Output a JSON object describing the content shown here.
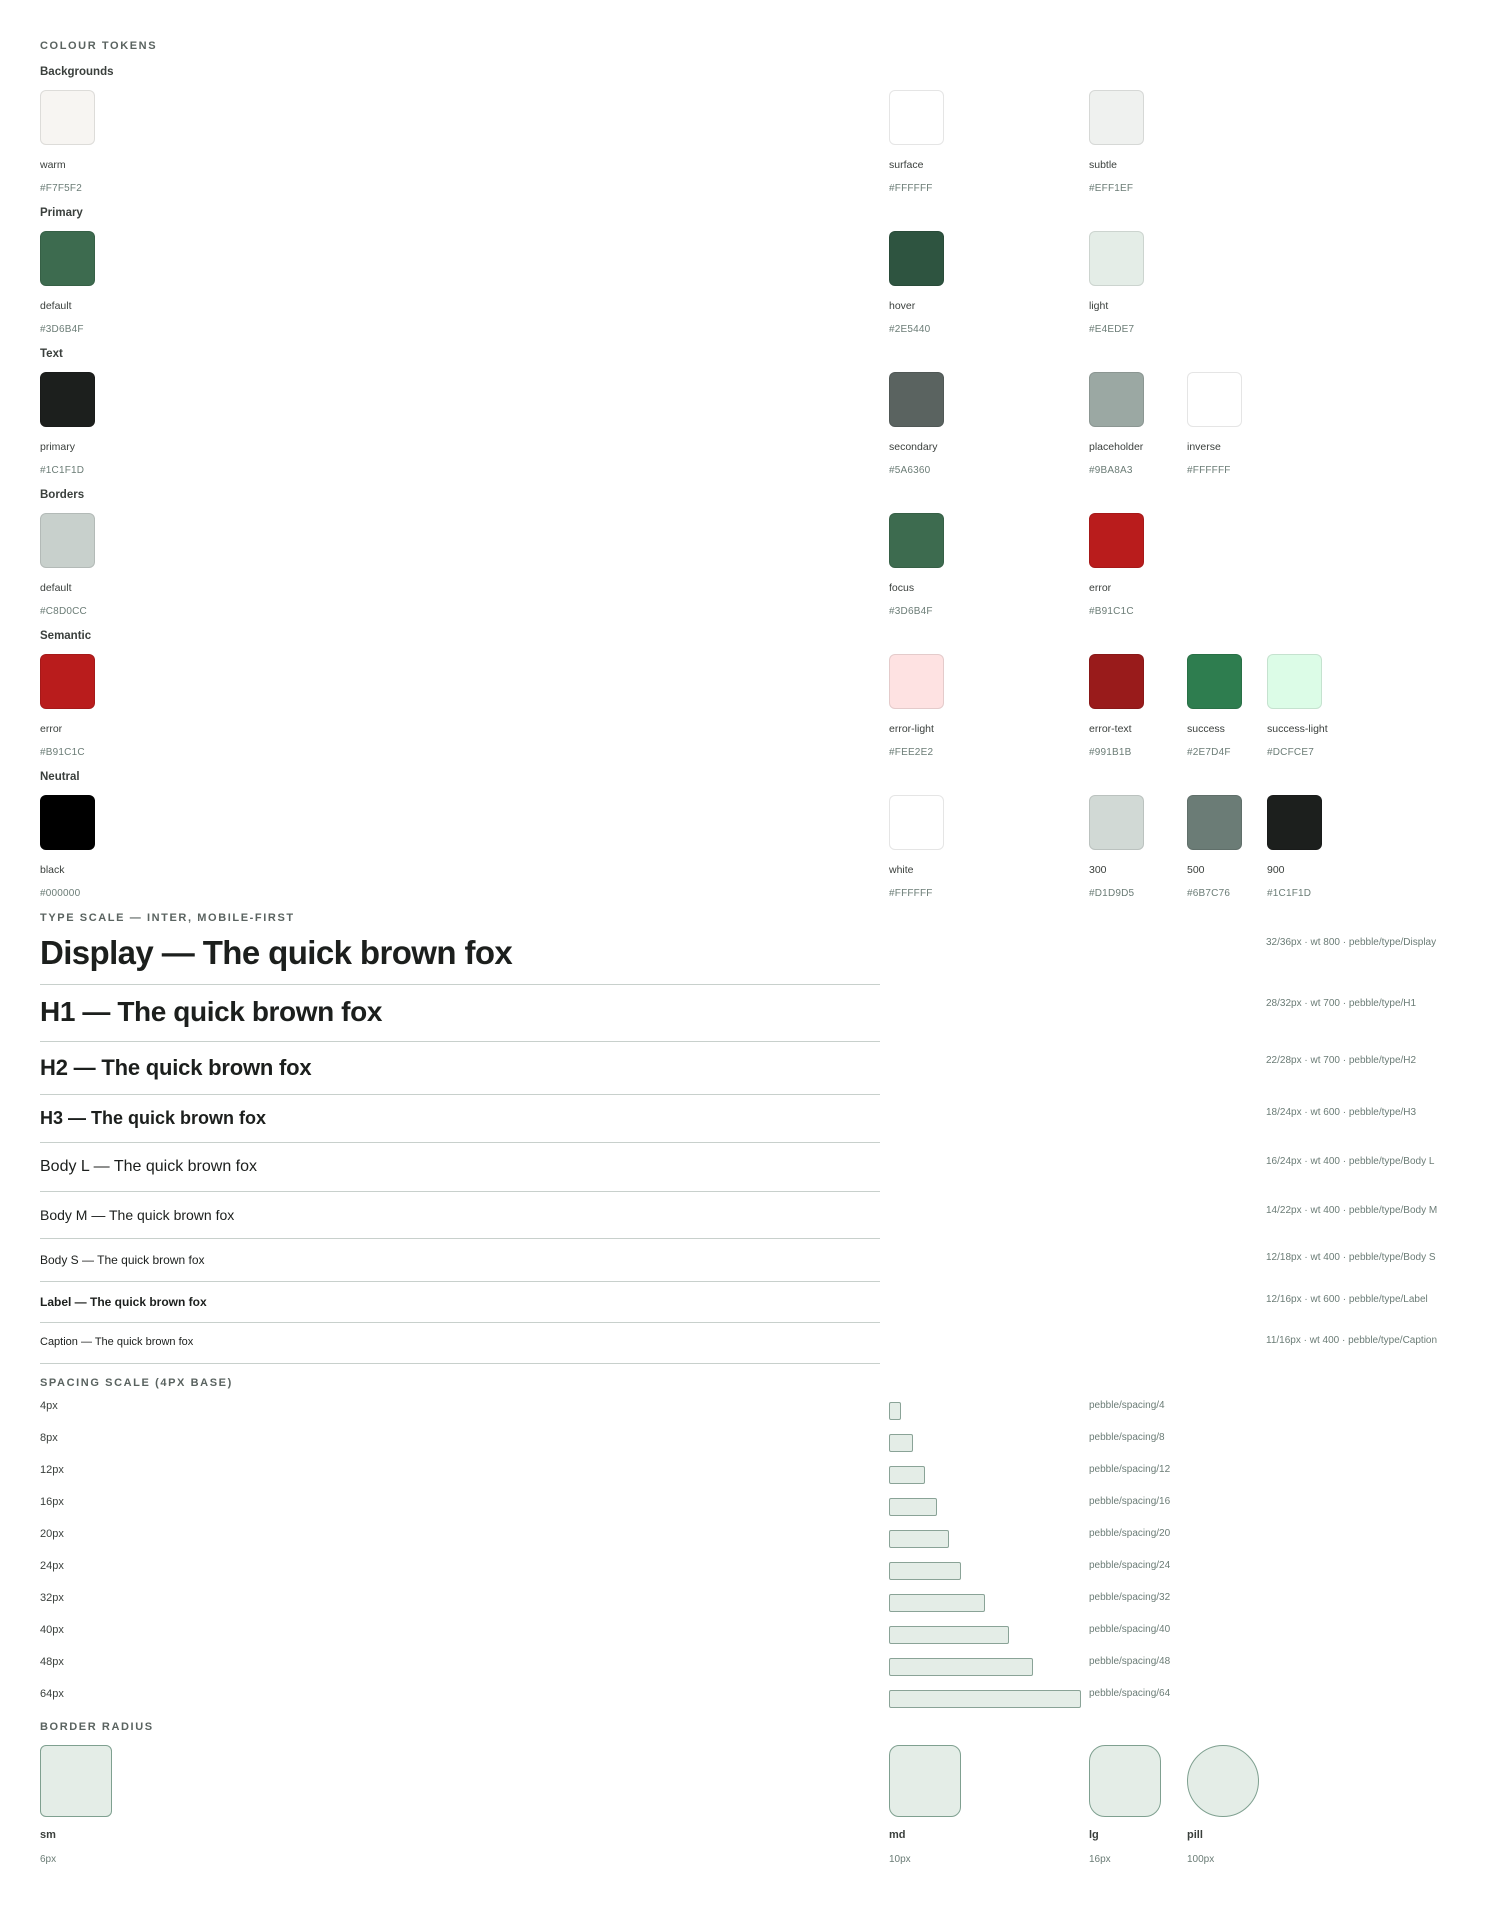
{
  "colour": {
    "title": "COLOUR TOKENS",
    "groups": [
      {
        "label": "Backgrounds",
        "swatches": [
          {
            "name": "warm",
            "hex": "#F7F5F2"
          },
          {
            "name": "surface",
            "hex": "#FFFFFF"
          },
          {
            "name": "subtle",
            "hex": "#EFF1EF"
          }
        ]
      },
      {
        "label": "Primary",
        "swatches": [
          {
            "name": "default",
            "hex": "#3D6B4F"
          },
          {
            "name": "hover",
            "hex": "#2E5440"
          },
          {
            "name": "light",
            "hex": "#E4EDE7"
          }
        ]
      },
      {
        "label": "Text",
        "swatches": [
          {
            "name": "primary",
            "hex": "#1C1F1D"
          },
          {
            "name": "secondary",
            "hex": "#5A6360"
          },
          {
            "name": "placeholder",
            "hex": "#9BA8A3"
          },
          {
            "name": "inverse",
            "hex": "#FFFFFF"
          }
        ]
      },
      {
        "label": "Borders",
        "swatches": [
          {
            "name": "default",
            "hex": "#C8D0CC"
          },
          {
            "name": "focus",
            "hex": "#3D6B4F"
          },
          {
            "name": "error",
            "hex": "#B91C1C"
          }
        ]
      },
      {
        "label": "Semantic",
        "swatches": [
          {
            "name": "error",
            "hex": "#B91C1C"
          },
          {
            "name": "error-light",
            "hex": "#FEE2E2"
          },
          {
            "name": "error-text",
            "hex": "#991B1B"
          },
          {
            "name": "success",
            "hex": "#2E7D4F"
          },
          {
            "name": "success-light",
            "hex": "#DCFCE7"
          }
        ]
      },
      {
        "label": "Neutral",
        "swatches": [
          {
            "name": "black",
            "hex": "#000000"
          },
          {
            "name": "white",
            "hex": "#FFFFFF"
          },
          {
            "name": "300",
            "hex": "#D1D9D5"
          },
          {
            "name": "500",
            "hex": "#6B7C76"
          },
          {
            "name": "900",
            "hex": "#1C1F1D"
          }
        ]
      }
    ]
  },
  "type": {
    "title": "TYPE SCALE — INTER, MOBILE-FIRST",
    "rows": [
      {
        "sample": "Display — The quick brown fox",
        "meta": "32/36px · wt 800 · pebble/type/Display"
      },
      {
        "sample": "H1 — The quick brown fox",
        "meta": "28/32px · wt 700 · pebble/type/H1"
      },
      {
        "sample": "H2 — The quick brown fox",
        "meta": "22/28px · wt 700 · pebble/type/H2"
      },
      {
        "sample": "H3 — The quick brown fox",
        "meta": "18/24px · wt 600 · pebble/type/H3"
      },
      {
        "sample": "Body L — The quick brown fox",
        "meta": "16/24px · wt 400 · pebble/type/Body L"
      },
      {
        "sample": "Body M — The quick brown fox",
        "meta": "14/22px · wt 400 · pebble/type/Body M"
      },
      {
        "sample": "Body S — The quick brown fox",
        "meta": "12/18px · wt 400 · pebble/type/Body S"
      },
      {
        "sample": "Label — The quick brown fox",
        "meta": "12/16px · wt 600 · pebble/type/Label"
      },
      {
        "sample": "Caption — The quick brown fox",
        "meta": "11/16px · wt 400 · pebble/type/Caption"
      }
    ]
  },
  "spacing": {
    "title": "SPACING SCALE (4PX BASE)",
    "rows": [
      {
        "label": "4px",
        "value": 4,
        "token": "pebble/spacing/4"
      },
      {
        "label": "8px",
        "value": 8,
        "token": "pebble/spacing/8"
      },
      {
        "label": "12px",
        "value": 12,
        "token": "pebble/spacing/12"
      },
      {
        "label": "16px",
        "value": 16,
        "token": "pebble/spacing/16"
      },
      {
        "label": "20px",
        "value": 20,
        "token": "pebble/spacing/20"
      },
      {
        "label": "24px",
        "value": 24,
        "token": "pebble/spacing/24"
      },
      {
        "label": "32px",
        "value": 32,
        "token": "pebble/spacing/32"
      },
      {
        "label": "40px",
        "value": 40,
        "token": "pebble/spacing/40"
      },
      {
        "label": "48px",
        "value": 48,
        "token": "pebble/spacing/48"
      },
      {
        "label": "64px",
        "value": 64,
        "token": "pebble/spacing/64"
      }
    ]
  },
  "radius": {
    "title": "BORDER RADIUS",
    "items": [
      {
        "name": "sm",
        "value": "6px"
      },
      {
        "name": "md",
        "value": "10px"
      },
      {
        "name": "lg",
        "value": "16px"
      },
      {
        "name": "pill",
        "value": "100px"
      }
    ]
  }
}
